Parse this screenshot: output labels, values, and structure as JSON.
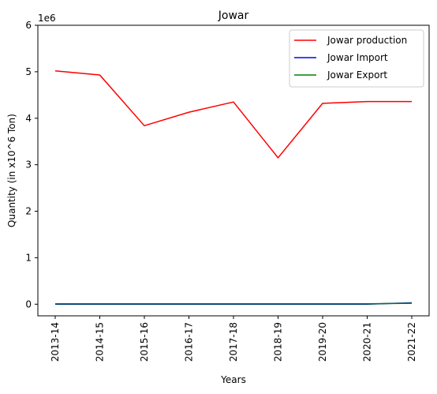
{
  "chart_data": {
    "type": "line",
    "title": "Jowar",
    "xlabel": "Years",
    "ylabel": "Quantity (in x10^6 Ton)",
    "y_scale_label": "1e6",
    "categories": [
      "2013-14",
      "2014-15",
      "2015-16",
      "2016-17",
      "2017-18",
      "2018-19",
      "2019-20",
      "2020-21",
      "2021-22"
    ],
    "y_ticks": [
      0,
      1,
      2,
      3,
      4,
      5,
      6
    ],
    "ylim": [
      -0.25,
      6.0
    ],
    "grid": false,
    "legend_position": "top-right",
    "series": [
      {
        "name": "Jowar production",
        "color": "#ff0000",
        "values": [
          5.02,
          4.93,
          3.84,
          4.13,
          4.35,
          3.15,
          4.32,
          4.36,
          4.36
        ]
      },
      {
        "name": "Jowar Import",
        "color": "#0000ff",
        "values": [
          0.0,
          0.0,
          0.0,
          0.0,
          0.0,
          0.0,
          0.0,
          0.0,
          0.03
        ]
      },
      {
        "name": "Jowar Export",
        "color": "#008000",
        "values": [
          0.01,
          0.01,
          0.01,
          0.01,
          0.01,
          0.01,
          0.01,
          0.01,
          0.02
        ]
      }
    ]
  }
}
